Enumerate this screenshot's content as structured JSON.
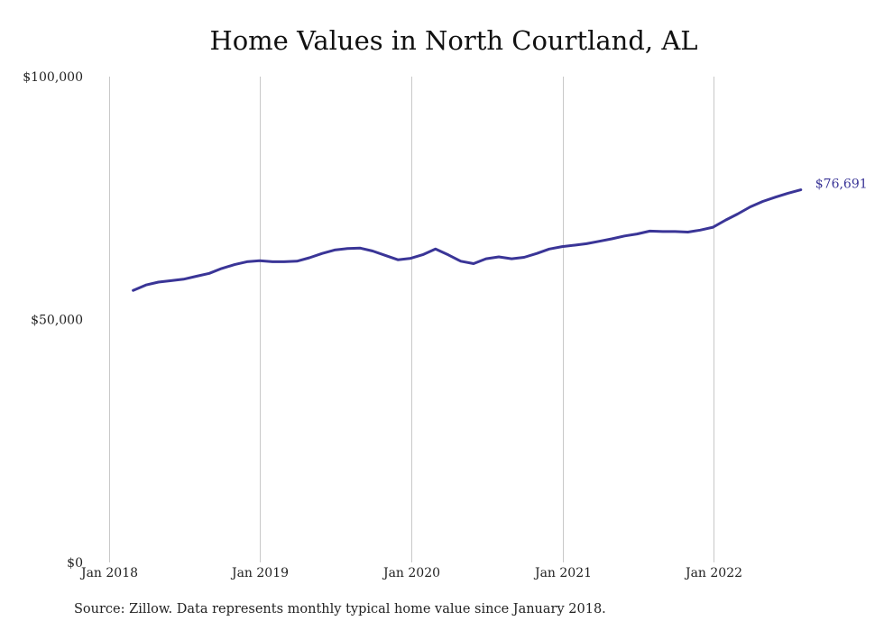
{
  "chart_data": {
    "type": "line",
    "title": "Home Values in North Courtland, AL",
    "xlabel": "",
    "ylabel": "",
    "ylim": [
      0,
      100000
    ],
    "xlim": [
      "2017-12-01",
      "2022-12-01"
    ],
    "y_ticks": [
      {
        "value": 0,
        "label": "$0"
      },
      {
        "value": 50000,
        "label": "$50,000"
      },
      {
        "value": 100000,
        "label": "$100,000"
      }
    ],
    "x_ticks": [
      {
        "date": "2018-01-01",
        "label": "Jan 2018"
      },
      {
        "date": "2019-01-01",
        "label": "Jan 2019"
      },
      {
        "date": "2020-01-01",
        "label": "Jan 2020"
      },
      {
        "date": "2021-01-01",
        "label": "Jan 2021"
      },
      {
        "date": "2022-01-01",
        "label": "Jan 2022"
      }
    ],
    "vertical_grid": true,
    "horizontal_grid": false,
    "line_color": "#3a3597",
    "series": [
      {
        "x": [
          "2018-02-28",
          "2018-03-31",
          "2018-04-30",
          "2018-05-31",
          "2018-06-30",
          "2018-07-31",
          "2018-08-31",
          "2018-09-30",
          "2018-10-31",
          "2018-11-30",
          "2018-12-31",
          "2019-01-31",
          "2019-02-28",
          "2019-03-31",
          "2019-04-30",
          "2019-05-31",
          "2019-06-30",
          "2019-07-31",
          "2019-08-31",
          "2019-09-30",
          "2019-10-31",
          "2019-11-30",
          "2019-12-31",
          "2020-01-31",
          "2020-02-29",
          "2020-03-31",
          "2020-04-30",
          "2020-05-31",
          "2020-06-30",
          "2020-07-31",
          "2020-08-31",
          "2020-09-30",
          "2020-10-31",
          "2020-11-30",
          "2020-12-31",
          "2021-01-31",
          "2021-02-28",
          "2021-03-31",
          "2021-04-30",
          "2021-05-31",
          "2021-06-30",
          "2021-07-31",
          "2021-08-31",
          "2021-09-30",
          "2021-10-31",
          "2021-11-30",
          "2021-12-31",
          "2022-01-31",
          "2022-02-28",
          "2022-03-31",
          "2022-04-30",
          "2022-05-31",
          "2022-06-30",
          "2022-07-31"
        ],
        "values": [
          56000,
          57100,
          57700,
          58000,
          58300,
          58900,
          59500,
          60500,
          61300,
          61900,
          62100,
          61900,
          61900,
          62000,
          62700,
          63600,
          64300,
          64600,
          64700,
          64100,
          63200,
          62300,
          62600,
          63400,
          64500,
          63300,
          62000,
          61500,
          62500,
          62900,
          62500,
          62800,
          63600,
          64500,
          65000,
          65300,
          65600,
          66100,
          66600,
          67200,
          67600,
          68200,
          68100,
          68100,
          68000,
          68400,
          69000,
          70500,
          71700,
          73200,
          74300,
          75200,
          76000,
          76691
        ]
      }
    ],
    "annotations": [
      {
        "x": "2022-07-31",
        "y": 76691,
        "text": "$76,691",
        "color": "#3a3597"
      }
    ],
    "source": "Source: Zillow. Data represents monthly typical home value since January 2018."
  }
}
